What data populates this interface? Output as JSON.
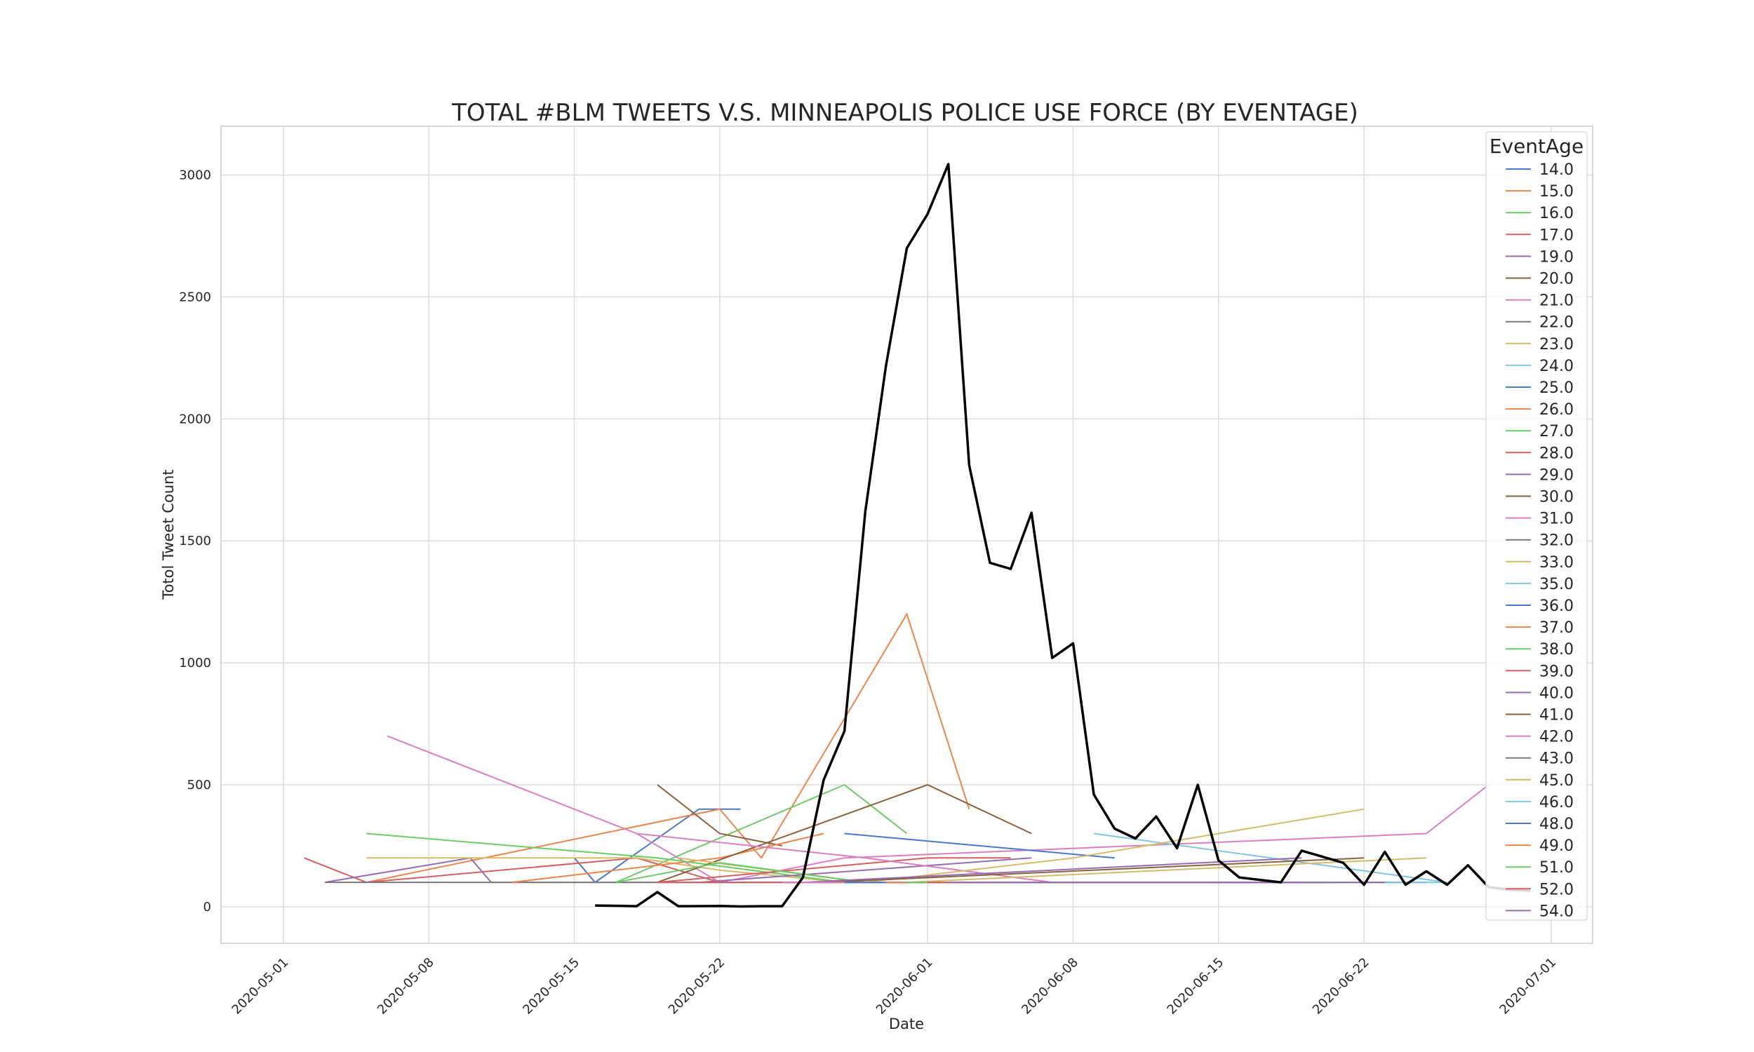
{
  "chart_data": {
    "type": "line",
    "title": "TOTAL #BLM TWEETS V.S. MINNEAPOLIS POLICE USE FORCE (BY EVENTAGE)",
    "xlabel": "Date",
    "ylabel": "Totol Tweet Count",
    "xlim": [
      "2020-04-28",
      "2020-07-03"
    ],
    "ylim": [
      -150,
      3200
    ],
    "x_ticks": [
      "2020-05-01",
      "2020-05-08",
      "2020-05-15",
      "2020-05-22",
      "2020-06-01",
      "2020-06-08",
      "2020-06-15",
      "2020-06-22",
      "2020-07-01"
    ],
    "y_ticks": [
      0,
      500,
      1000,
      1500,
      2000,
      2500,
      3000
    ],
    "grid": true,
    "legend": {
      "title": "EventAge",
      "placement": "top-right"
    },
    "total_series": {
      "color": "#000000",
      "points": [
        [
          "2020-05-16",
          5
        ],
        [
          "2020-05-18",
          2
        ],
        [
          "2020-05-19",
          60
        ],
        [
          "2020-05-20",
          2
        ],
        [
          "2020-05-22",
          3
        ],
        [
          "2020-05-23",
          1
        ],
        [
          "2020-05-24",
          2
        ],
        [
          "2020-05-25",
          2
        ],
        [
          "2020-05-26",
          120
        ],
        [
          "2020-05-27",
          520
        ],
        [
          "2020-05-28",
          720
        ],
        [
          "2020-05-29",
          1620
        ],
        [
          "2020-05-30",
          2220
        ],
        [
          "2020-05-31",
          2700
        ],
        [
          "2020-06-01",
          2840
        ],
        [
          "2020-06-02",
          3045
        ],
        [
          "2020-06-03",
          1810
        ],
        [
          "2020-06-04",
          1410
        ],
        [
          "2020-06-05",
          1385
        ],
        [
          "2020-06-06",
          1615
        ],
        [
          "2020-06-07",
          1020
        ],
        [
          "2020-06-08",
          1080
        ],
        [
          "2020-06-09",
          460
        ],
        [
          "2020-06-10",
          320
        ],
        [
          "2020-06-11",
          280
        ],
        [
          "2020-06-12",
          370
        ],
        [
          "2020-06-13",
          240
        ],
        [
          "2020-06-14",
          500
        ],
        [
          "2020-06-15",
          190
        ],
        [
          "2020-06-16",
          120
        ],
        [
          "2020-06-18",
          100
        ],
        [
          "2020-06-19",
          230
        ],
        [
          "2020-06-21",
          180
        ],
        [
          "2020-06-22",
          90
        ],
        [
          "2020-06-23",
          225
        ],
        [
          "2020-06-24",
          90
        ],
        [
          "2020-06-25",
          145
        ],
        [
          "2020-06-26",
          90
        ],
        [
          "2020-06-27",
          170
        ],
        [
          "2020-06-28",
          80
        ],
        [
          "2020-06-29",
          70
        ],
        [
          "2020-06-30",
          65
        ]
      ]
    },
    "series": [
      {
        "name": "14.0",
        "color": "#4878d0",
        "points": [
          [
            "2020-05-15",
            200
          ],
          [
            "2020-05-16",
            100
          ],
          [
            "2020-05-21",
            400
          ],
          [
            "2020-05-23",
            400
          ]
        ]
      },
      {
        "name": "15.0",
        "color": "#ee854a",
        "points": [
          [
            "2020-05-05",
            100
          ],
          [
            "2020-05-22",
            400
          ],
          [
            "2020-05-24",
            200
          ],
          [
            "2020-05-31",
            1200
          ],
          [
            "2020-06-03",
            400
          ]
        ]
      },
      {
        "name": "16.0",
        "color": "#6acc64",
        "points": [
          [
            "2020-05-17",
            100
          ],
          [
            "2020-05-28",
            500
          ],
          [
            "2020-05-31",
            300
          ]
        ]
      },
      {
        "name": "17.0",
        "color": "#d65f5f",
        "points": [
          [
            "2020-05-02",
            200
          ],
          [
            "2020-05-05",
            100
          ],
          [
            "2020-05-18",
            200
          ],
          [
            "2020-05-22",
            100
          ]
        ]
      },
      {
        "name": "19.0",
        "color": "#956cb4",
        "points": [
          [
            "2020-05-03",
            100
          ],
          [
            "2020-05-10",
            200
          ],
          [
            "2020-05-11",
            100
          ],
          [
            "2020-05-22",
            100
          ],
          [
            "2020-06-25",
            100
          ]
        ]
      },
      {
        "name": "20.0",
        "color": "#8c613c",
        "points": [
          [
            "2020-05-19",
            500
          ],
          [
            "2020-05-22",
            300
          ],
          [
            "2020-05-25",
            250
          ]
        ]
      },
      {
        "name": "21.0",
        "color": "#dc7ec0",
        "points": [
          [
            "2020-05-06",
            700
          ],
          [
            "2020-05-18",
            300
          ],
          [
            "2020-05-22",
            100
          ],
          [
            "2020-05-28",
            200
          ],
          [
            "2020-06-25",
            300
          ],
          [
            "2020-06-28",
            500
          ]
        ]
      },
      {
        "name": "22.0",
        "color": "#797979",
        "points": [
          [
            "2020-05-03",
            100
          ],
          [
            "2020-06-25",
            100
          ]
        ]
      },
      {
        "name": "23.0",
        "color": "#d5bb67",
        "points": [
          [
            "2020-05-05",
            200
          ],
          [
            "2020-05-18",
            200
          ],
          [
            "2020-05-22",
            150
          ],
          [
            "2020-05-28",
            100
          ]
        ]
      },
      {
        "name": "24.0",
        "color": "#82c6e2",
        "points": [
          [
            "2020-06-09",
            300
          ],
          [
            "2020-06-26",
            100
          ]
        ]
      },
      {
        "name": "25.0",
        "color": "#4878d0",
        "points": [
          [
            "2020-05-28",
            300
          ],
          [
            "2020-06-10",
            200
          ]
        ]
      },
      {
        "name": "26.0",
        "color": "#ee854a",
        "points": [
          [
            "2020-05-12",
            100
          ],
          [
            "2020-05-22",
            200
          ],
          [
            "2020-05-27",
            300
          ]
        ]
      },
      {
        "name": "27.0",
        "color": "#6acc64",
        "points": [
          [
            "2020-05-05",
            300
          ],
          [
            "2020-05-19",
            200
          ],
          [
            "2020-05-28",
            100
          ]
        ]
      },
      {
        "name": "28.0",
        "color": "#d65f5f",
        "points": [
          [
            "2020-05-19",
            100
          ],
          [
            "2020-06-01",
            200
          ],
          [
            "2020-06-05",
            200
          ]
        ]
      },
      {
        "name": "29.0",
        "color": "#956cb4",
        "points": [
          [
            "2020-05-21",
            100
          ],
          [
            "2020-06-06",
            200
          ]
        ]
      },
      {
        "name": "30.0",
        "color": "#8c613c",
        "points": [
          [
            "2020-05-19",
            100
          ],
          [
            "2020-06-01",
            500
          ],
          [
            "2020-06-06",
            300
          ]
        ]
      },
      {
        "name": "31.0",
        "color": "#dc7ec0",
        "points": [
          [
            "2020-05-18",
            300
          ],
          [
            "2020-05-29",
            200
          ],
          [
            "2020-06-07",
            100
          ]
        ]
      },
      {
        "name": "32.0",
        "color": "#797979",
        "points": [
          [
            "2020-05-25",
            100
          ],
          [
            "2020-06-20",
            100
          ]
        ]
      },
      {
        "name": "33.0",
        "color": "#d5bb67",
        "points": [
          [
            "2020-05-20",
            200
          ],
          [
            "2020-05-29",
            100
          ],
          [
            "2020-06-08",
            200
          ],
          [
            "2020-06-22",
            400
          ]
        ]
      },
      {
        "name": "35.0",
        "color": "#82c6e2",
        "points": [
          [
            "2020-05-20",
            100
          ],
          [
            "2020-06-18",
            100
          ]
        ]
      },
      {
        "name": "36.0",
        "color": "#4878d0",
        "points": [
          [
            "2020-05-20",
            100
          ],
          [
            "2020-06-25",
            100
          ]
        ]
      },
      {
        "name": "37.0",
        "color": "#ee854a",
        "points": [
          [
            "2020-05-28",
            100
          ],
          [
            "2020-06-05",
            100
          ]
        ]
      },
      {
        "name": "38.0",
        "color": "#6acc64",
        "points": [
          [
            "2020-05-17",
            100
          ],
          [
            "2020-05-22",
            180
          ],
          [
            "2020-05-29",
            100
          ]
        ]
      },
      {
        "name": "39.0",
        "color": "#d65f5f",
        "points": [
          [
            "2020-05-19",
            100
          ],
          [
            "2020-06-12",
            100
          ]
        ]
      },
      {
        "name": "40.0",
        "color": "#956cb4",
        "points": [
          [
            "2020-05-26",
            100
          ],
          [
            "2020-06-19",
            200
          ]
        ]
      },
      {
        "name": "41.0",
        "color": "#8c613c",
        "points": [
          [
            "2020-05-27",
            100
          ],
          [
            "2020-06-22",
            200
          ]
        ]
      },
      {
        "name": "42.0",
        "color": "#dc7ec0",
        "points": [
          [
            "2020-05-25",
            100
          ],
          [
            "2020-06-22",
            100
          ]
        ]
      },
      {
        "name": "43.0",
        "color": "#797979",
        "points": [
          [
            "2020-05-30",
            100
          ],
          [
            "2020-06-21",
            100
          ]
        ]
      },
      {
        "name": "45.0",
        "color": "#d5bb67",
        "points": [
          [
            "2020-05-31",
            100
          ],
          [
            "2020-06-25",
            200
          ]
        ]
      },
      {
        "name": "46.0",
        "color": "#82c6e2",
        "points": [
          [
            "2020-06-03",
            100
          ],
          [
            "2020-06-26",
            100
          ]
        ]
      },
      {
        "name": "48.0",
        "color": "#4878d0",
        "points": [
          [
            "2020-05-28",
            100
          ],
          [
            "2020-06-20",
            100
          ]
        ]
      },
      {
        "name": "49.0",
        "color": "#ee854a",
        "points": [
          [
            "2020-05-30",
            100
          ],
          [
            "2020-06-15",
            100
          ]
        ]
      },
      {
        "name": "51.0",
        "color": "#6acc64",
        "points": [
          [
            "2020-05-31",
            100
          ],
          [
            "2020-06-15",
            100
          ]
        ]
      },
      {
        "name": "52.0",
        "color": "#d65f5f",
        "points": [
          [
            "2020-06-01",
            100
          ],
          [
            "2020-06-19",
            100
          ]
        ]
      },
      {
        "name": "54.0",
        "color": "#956cb4",
        "points": [
          [
            "2020-06-02",
            100
          ],
          [
            "2020-06-23",
            100
          ]
        ]
      }
    ]
  }
}
